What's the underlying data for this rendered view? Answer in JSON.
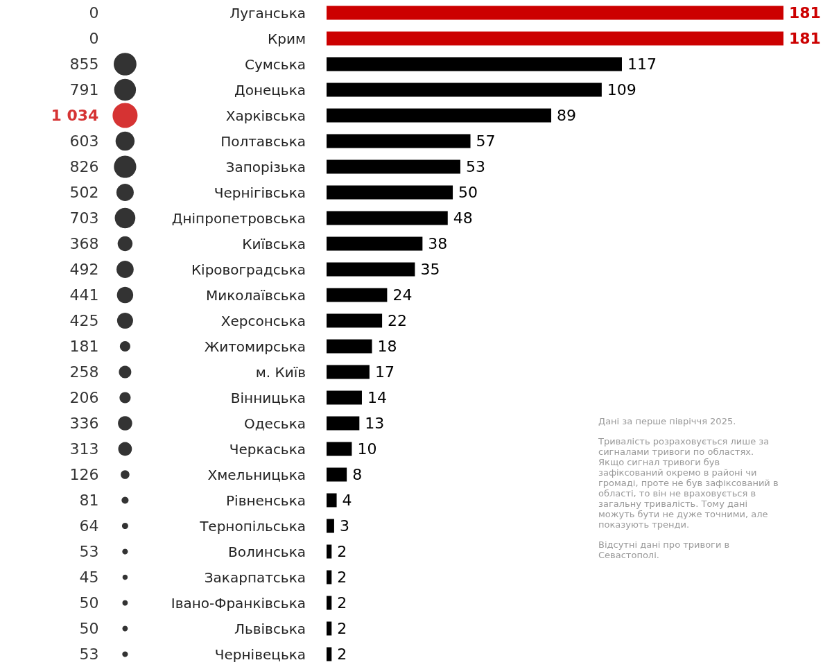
{
  "chart_data": [
    {
      "type": "other",
      "values": [
        0,
        0,
        855,
        791,
        1034,
        603,
        826,
        502,
        703,
        368,
        492,
        441,
        425,
        181,
        258,
        206,
        336,
        313,
        126,
        81,
        64,
        53,
        45,
        50,
        50,
        53
      ],
      "value_labels": [
        "0",
        "0",
        "855",
        "791",
        "1 034",
        "603",
        "826",
        "502",
        "703",
        "368",
        "492",
        "441",
        "425",
        "181",
        "258",
        "206",
        "336",
        "313",
        "126",
        "81",
        "64",
        "53",
        "45",
        "50",
        "50",
        "53"
      ],
      "colors": [
        "#000000",
        "#000000",
        "#000000",
        "#000000",
        "#cc0000",
        "#000000",
        "#000000",
        "#000000",
        "#000000",
        "#000000",
        "#000000",
        "#000000",
        "#000000",
        "#000000",
        "#000000",
        "#000000",
        "#000000",
        "#000000",
        "#000000",
        "#000000",
        "#000000",
        "#000000",
        "#000000",
        "#000000",
        "#000000",
        "#000000"
      ]
    },
    {
      "type": "bar",
      "orientation": "horizontal",
      "categories": [
        "Луганська",
        "Крим",
        "Сумська",
        "Донецька",
        "Харківська",
        "Полтавська",
        "Запорізька",
        "Чернігівська",
        "Дніпропетровська",
        "Київська",
        "Кіровоградська",
        "Миколаївська",
        "Херсонська",
        "Житомирська",
        "м. Київ",
        "Вінницька",
        "Одеська",
        "Черкаська",
        "Хмельницька",
        "Рівненська",
        "Тернопільська",
        "Волинська",
        "Закарпатська",
        "Івано-Франківська",
        "Львівська",
        "Чернівецька"
      ],
      "tick_labels": "y",
      "values": [
        181,
        181,
        117,
        109,
        89,
        57,
        53,
        50,
        48,
        38,
        35,
        24,
        22,
        18,
        17,
        14,
        13,
        10,
        8,
        4,
        3,
        2,
        2,
        2,
        2,
        2
      ],
      "colors": [
        "#cc0000",
        "#cc0000",
        "#000000",
        "#000000",
        "#000000",
        "#000000",
        "#000000",
        "#000000",
        "#000000",
        "#000000",
        "#000000",
        "#000000",
        "#000000",
        "#000000",
        "#000000",
        "#000000",
        "#000000",
        "#000000",
        "#000000",
        "#000000",
        "#000000",
        "#000000",
        "#000000",
        "#000000",
        "#000000",
        "#000000"
      ],
      "xlim": [
        0,
        181
      ],
      "data_labels": true,
      "annotations": [
        "Дані за перше півріччя 2025.",
        "Тривалість розраховується лише за сигналами тривоги по областях. Якщо сигнал тривоги був зафіксований окремо в районі чи громаді, проте не був зафіксований в області, то він не враховується в загальну тривалість. Тому дані можуть бути не дуже точними, але показують тренди.",
        "Відсутні дані про тривоги в Севастополі."
      ]
    }
  ]
}
